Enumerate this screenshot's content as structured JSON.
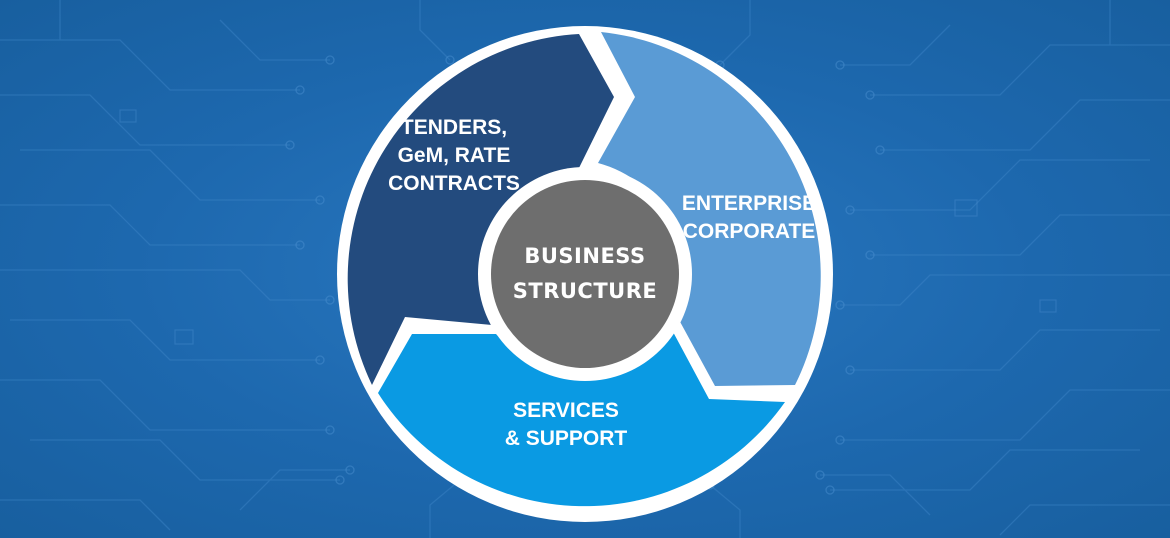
{
  "center": {
    "line1": "BUSINESS",
    "line2": "STRUCTURE",
    "color": "#6e6e6e"
  },
  "segments": {
    "tenders": {
      "line1": "TENDERS,",
      "line2": "GeM, RATE",
      "line3": "CONTRACTS",
      "color": "#234b7e"
    },
    "enterprise": {
      "line1": "ENTERPRISE",
      "line2": "CORPORATE",
      "color": "#5a9bd5"
    },
    "services": {
      "line1": "SERVICES",
      "line2": "& SUPPORT",
      "color": "#0a9ae3"
    }
  },
  "background_color": "#1d67ad"
}
